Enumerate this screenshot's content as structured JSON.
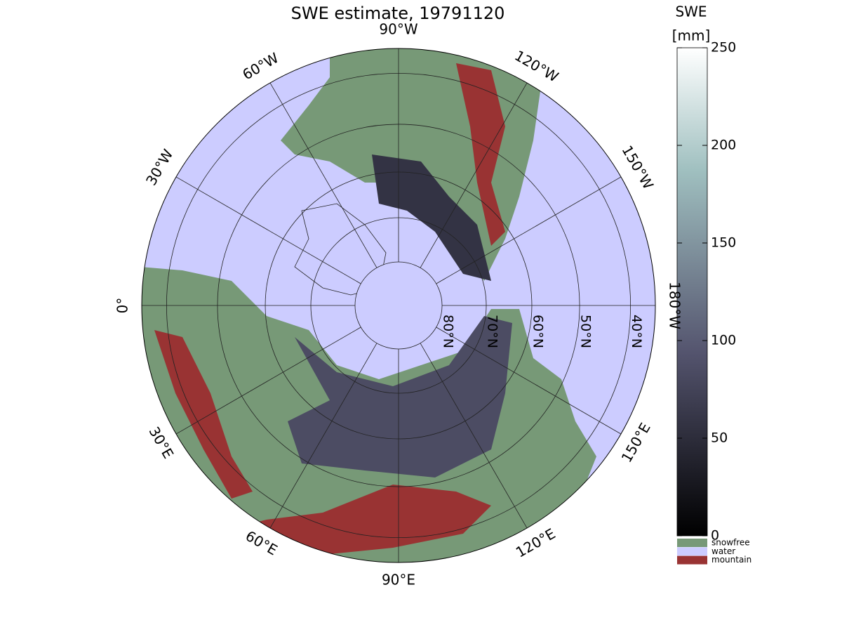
{
  "title": "SWE estimate, 19791120",
  "map": {
    "longitude_labels": [
      "0°",
      "30°E",
      "60°E",
      "90°E",
      "120°E",
      "150°E",
      "180°W",
      "150°W",
      "120°W",
      "90°W",
      "60°W",
      "30°W"
    ],
    "latitude_labels": [
      "80°N",
      "70°N",
      "60°N",
      "50°N",
      "40°N"
    ]
  },
  "colorbar": {
    "label_lines": [
      "SWE",
      "[mm]"
    ],
    "lim": [
      0,
      250
    ],
    "ticks": [
      0,
      50,
      100,
      150,
      200,
      250
    ]
  },
  "legend": [
    {
      "label": "snowfree",
      "color": "#779977"
    },
    {
      "label": "water",
      "color": "#ccccff"
    },
    {
      "label": "mountain",
      "color": "#993333"
    }
  ]
}
